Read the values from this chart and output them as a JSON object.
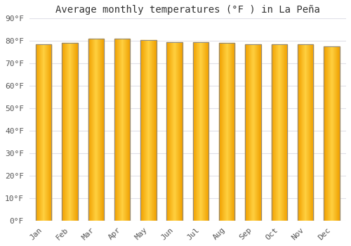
{
  "title": "Average monthly temperatures (°F ) in La Peña",
  "months": [
    "Jan",
    "Feb",
    "Mar",
    "Apr",
    "May",
    "Jun",
    "Jul",
    "Aug",
    "Sep",
    "Oct",
    "Nov",
    "Dec"
  ],
  "values": [
    78.5,
    79.0,
    81.0,
    81.0,
    80.5,
    79.5,
    79.5,
    79.0,
    78.5,
    78.5,
    78.5,
    77.5
  ],
  "ylim": [
    0,
    90
  ],
  "yticks": [
    0,
    10,
    20,
    30,
    40,
    50,
    60,
    70,
    80,
    90
  ],
  "ytick_labels": [
    "0°F",
    "10°F",
    "20°F",
    "30°F",
    "40°F",
    "50°F",
    "60°F",
    "70°F",
    "80°F",
    "90°F"
  ],
  "bar_center_color": "#FFD040",
  "bar_edge_color": "#F0A000",
  "bar_border_color": "#888888",
  "background_color": "#FFFFFF",
  "plot_bg_color": "#FFFFFF",
  "grid_color": "#E0E0E8",
  "title_fontsize": 10,
  "tick_fontsize": 8,
  "font_family": "monospace",
  "bar_width": 0.6
}
